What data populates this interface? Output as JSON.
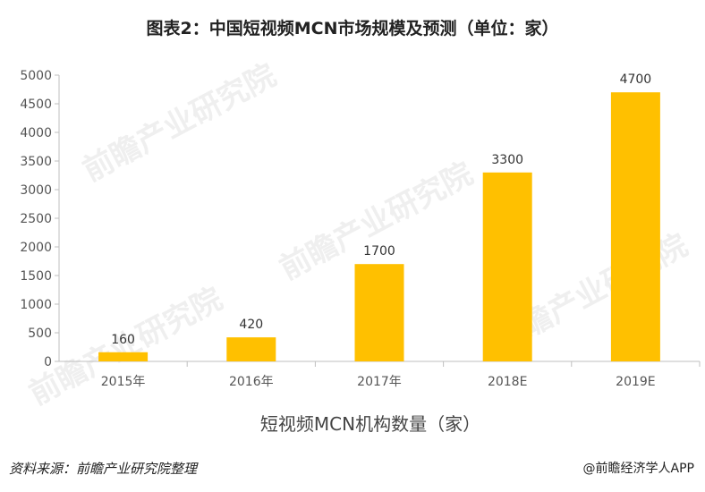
{
  "title": "图表2：中国短视频MCN市场规模及预测（单位：家）",
  "footer": {
    "source": "资料来源：前瞻产业研究院整理",
    "credit": "@前瞻经济学人APP"
  },
  "watermark": "前瞻产业研究院",
  "colors": {
    "bar": "#FFC000",
    "axis": "#BFBFBF"
  },
  "chart_data": {
    "type": "bar",
    "title": "图表2：中国短视频MCN市场规模及预测（单位：家）",
    "categories": [
      "2015年",
      "2016年",
      "2017年",
      "2018E",
      "2019E"
    ],
    "values": [
      160,
      420,
      1700,
      3300,
      4700
    ],
    "xlabel": "短视频MCN机构数量（家）",
    "ylabel": "",
    "ylim": [
      0,
      5000
    ],
    "yticks": [
      0,
      500,
      1000,
      1500,
      2000,
      2500,
      3000,
      3500,
      4000,
      4500,
      5000
    ],
    "grid": false,
    "legend": "none"
  }
}
